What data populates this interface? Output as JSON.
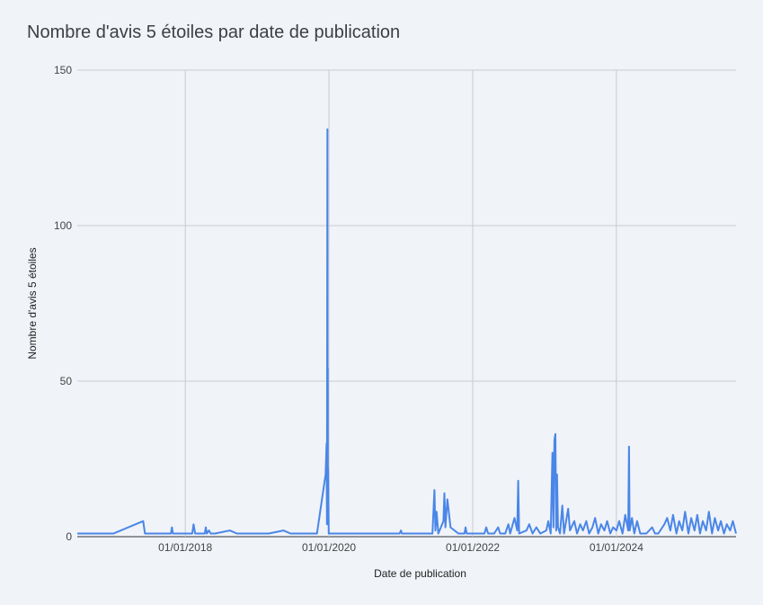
{
  "chart_data": {
    "type": "line",
    "title": "Nombre d'avis 5 étoiles par date de publication",
    "xlabel": "Date de publication",
    "ylabel": "Nombre d'avis 5 étoiles",
    "ylim": [
      0,
      150
    ],
    "yticks": [
      0,
      50,
      100,
      150
    ],
    "ytick_labels": [
      "0",
      "50",
      "100",
      "150"
    ],
    "xlim": [
      "2016-07-01",
      "2025-08-31"
    ],
    "xticks": [
      "2018-01-01",
      "2020-01-01",
      "2022-01-01",
      "2024-01-01"
    ],
    "xtick_labels": [
      "01/01/2018",
      "01/01/2020",
      "01/01/2022",
      "01/01/2024"
    ],
    "grid": true,
    "line_color": "#4a86e8",
    "series": [
      {
        "points": [
          [
            "2016-07-01",
            1
          ],
          [
            "2017-01-01",
            1
          ],
          [
            "2017-06-01",
            5
          ],
          [
            "2017-06-10",
            1
          ],
          [
            "2017-10-20",
            1
          ],
          [
            "2017-10-25",
            3
          ],
          [
            "2017-10-30",
            1
          ],
          [
            "2018-01-01",
            1
          ],
          [
            "2018-02-05",
            1
          ],
          [
            "2018-02-12",
            4
          ],
          [
            "2018-02-20",
            1
          ],
          [
            "2018-04-10",
            1
          ],
          [
            "2018-04-15",
            3
          ],
          [
            "2018-04-20",
            1
          ],
          [
            "2018-05-01",
            2
          ],
          [
            "2018-05-10",
            1
          ],
          [
            "2018-06-01",
            1
          ],
          [
            "2018-08-15",
            2
          ],
          [
            "2018-09-20",
            1
          ],
          [
            "2019-03-01",
            1
          ],
          [
            "2019-05-15",
            2
          ],
          [
            "2019-06-20",
            1
          ],
          [
            "2019-11-01",
            1
          ],
          [
            "2019-12-15",
            20
          ],
          [
            "2019-12-20",
            30
          ],
          [
            "2019-12-22",
            4
          ],
          [
            "2019-12-24",
            131
          ],
          [
            "2019-12-25",
            8
          ],
          [
            "2019-12-26",
            54
          ],
          [
            "2019-12-27",
            5
          ],
          [
            "2019-12-28",
            22
          ],
          [
            "2019-12-31",
            1
          ],
          [
            "2020-02-01",
            1
          ],
          [
            "2020-12-25",
            1
          ],
          [
            "2021-01-01",
            2
          ],
          [
            "2021-01-06",
            1
          ],
          [
            "2021-06-10",
            1
          ],
          [
            "2021-06-20",
            15
          ],
          [
            "2021-06-25",
            2
          ],
          [
            "2021-07-01",
            8
          ],
          [
            "2021-07-10",
            1
          ],
          [
            "2021-08-05",
            5
          ],
          [
            "2021-08-10",
            14
          ],
          [
            "2021-08-15",
            3
          ],
          [
            "2021-08-25",
            12
          ],
          [
            "2021-09-10",
            3
          ],
          [
            "2021-10-20",
            1
          ],
          [
            "2021-11-20",
            1
          ],
          [
            "2021-11-25",
            3
          ],
          [
            "2021-12-01",
            1
          ],
          [
            "2022-01-01",
            1
          ],
          [
            "2022-03-01",
            1
          ],
          [
            "2022-03-10",
            3
          ],
          [
            "2022-03-20",
            1
          ],
          [
            "2022-04-20",
            1
          ],
          [
            "2022-05-10",
            3
          ],
          [
            "2022-05-20",
            1
          ],
          [
            "2022-06-15",
            1
          ],
          [
            "2022-07-01",
            4
          ],
          [
            "2022-07-10",
            1
          ],
          [
            "2022-08-01",
            6
          ],
          [
            "2022-08-15",
            2
          ],
          [
            "2022-08-20",
            18
          ],
          [
            "2022-08-25",
            1
          ],
          [
            "2022-10-01",
            2
          ],
          [
            "2022-10-15",
            4
          ],
          [
            "2022-11-01",
            1
          ],
          [
            "2022-11-20",
            3
          ],
          [
            "2022-12-10",
            1
          ],
          [
            "2023-01-10",
            2
          ],
          [
            "2023-01-20",
            5
          ],
          [
            "2023-02-01",
            1
          ],
          [
            "2023-02-10",
            27
          ],
          [
            "2023-02-15",
            3
          ],
          [
            "2023-02-20",
            31
          ],
          [
            "2023-02-25",
            33
          ],
          [
            "2023-03-01",
            2
          ],
          [
            "2023-03-05",
            20
          ],
          [
            "2023-03-10",
            3
          ],
          [
            "2023-03-20",
            1
          ],
          [
            "2023-04-01",
            10
          ],
          [
            "2023-04-10",
            1
          ],
          [
            "2023-05-01",
            9
          ],
          [
            "2023-05-10",
            2
          ],
          [
            "2023-06-01",
            5
          ],
          [
            "2023-06-15",
            1
          ],
          [
            "2023-07-01",
            4
          ],
          [
            "2023-07-15",
            2
          ],
          [
            "2023-08-01",
            5
          ],
          [
            "2023-08-15",
            1
          ],
          [
            "2023-09-01",
            3
          ],
          [
            "2023-09-15",
            6
          ],
          [
            "2023-10-01",
            1
          ],
          [
            "2023-10-15",
            4
          ],
          [
            "2023-11-01",
            2
          ],
          [
            "2023-11-15",
            5
          ],
          [
            "2023-12-01",
            1
          ],
          [
            "2023-12-15",
            3
          ],
          [
            "2024-01-01",
            2
          ],
          [
            "2024-01-15",
            5
          ],
          [
            "2024-02-01",
            1
          ],
          [
            "2024-02-15",
            7
          ],
          [
            "2024-03-01",
            2
          ],
          [
            "2024-03-05",
            29
          ],
          [
            "2024-03-08",
            2
          ],
          [
            "2024-03-20",
            6
          ],
          [
            "2024-04-01",
            1
          ],
          [
            "2024-04-15",
            5
          ],
          [
            "2024-05-01",
            1
          ],
          [
            "2024-06-01",
            1
          ],
          [
            "2024-07-01",
            3
          ],
          [
            "2024-07-15",
            1
          ],
          [
            "2024-08-01",
            1
          ],
          [
            "2024-09-01",
            4
          ],
          [
            "2024-09-15",
            6
          ],
          [
            "2024-10-01",
            2
          ],
          [
            "2024-10-15",
            7
          ],
          [
            "2024-11-01",
            1
          ],
          [
            "2024-11-15",
            5
          ],
          [
            "2024-12-01",
            2
          ],
          [
            "2024-12-15",
            8
          ],
          [
            "2025-01-01",
            1
          ],
          [
            "2025-01-15",
            6
          ],
          [
            "2025-02-01",
            2
          ],
          [
            "2025-02-15",
            7
          ],
          [
            "2025-03-01",
            1
          ],
          [
            "2025-03-15",
            5
          ],
          [
            "2025-04-01",
            2
          ],
          [
            "2025-04-15",
            8
          ],
          [
            "2025-05-01",
            1
          ],
          [
            "2025-05-15",
            6
          ],
          [
            "2025-06-01",
            2
          ],
          [
            "2025-06-15",
            5
          ],
          [
            "2025-07-01",
            1
          ],
          [
            "2025-07-15",
            4
          ],
          [
            "2025-08-01",
            2
          ],
          [
            "2025-08-15",
            5
          ],
          [
            "2025-08-31",
            1
          ]
        ]
      }
    ]
  }
}
